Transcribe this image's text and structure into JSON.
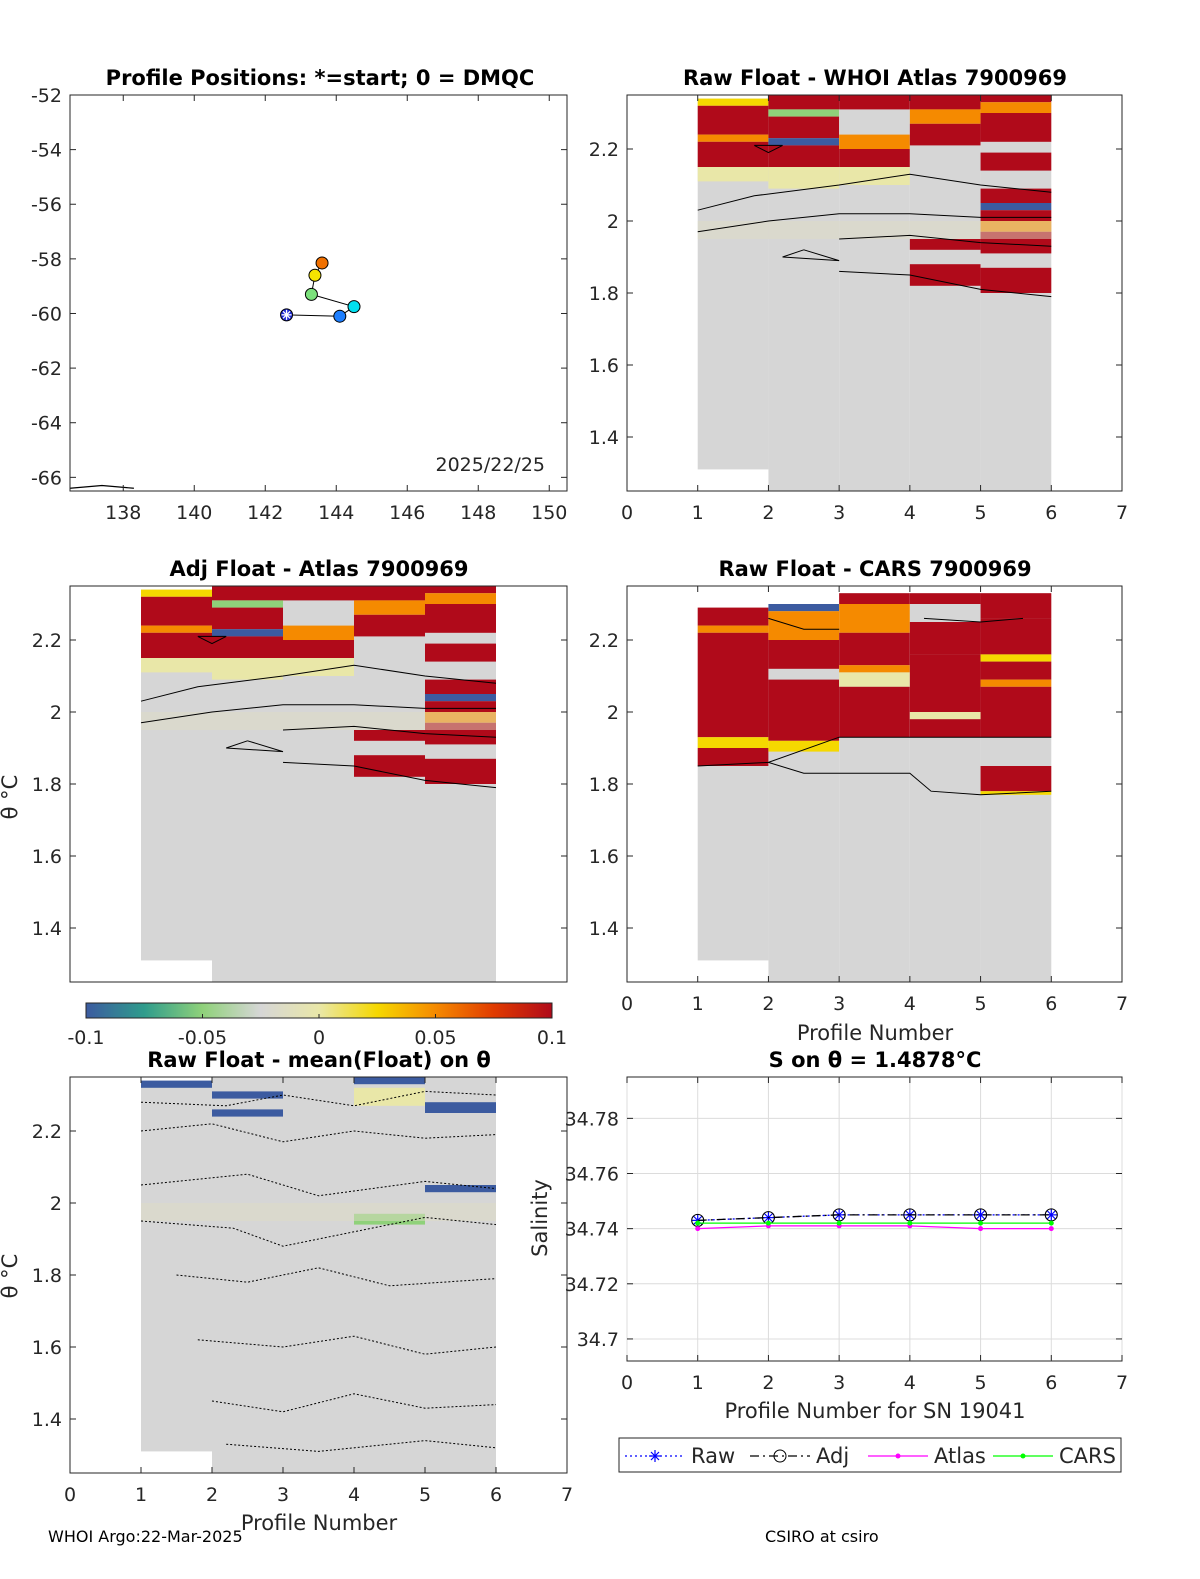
{
  "footer": {
    "left": "WHOI Argo:22-Mar-2025",
    "right": "CSIRO at csiro"
  },
  "colorbar": {
    "ticks": [
      "-0.1",
      "-0.05",
      "0",
      "0.05",
      "0.1"
    ],
    "range": [
      -0.1,
      0.1
    ],
    "colors": [
      "#3c5ba0",
      "#2f9c8c",
      "#8fd17a",
      "#d6d6d6",
      "#e9e7a8",
      "#f5d800",
      "#f58a00",
      "#e03b00",
      "#b00a1a"
    ]
  },
  "chart_data": [
    {
      "type": "scatter",
      "id": "positions",
      "title": "Profile Positions: *=start; 0 = DMQC",
      "annotation": "2025/22/25",
      "xlim": [
        136.5,
        150.5
      ],
      "ylim": [
        -66.5,
        -52
      ],
      "xticks": [
        "138",
        "140",
        "142",
        "144",
        "146",
        "148",
        "150"
      ],
      "yticks": [
        "-52",
        "-54",
        "-56",
        "-58",
        "-60",
        "-62",
        "-64",
        "-66"
      ],
      "points": [
        {
          "x": 142.6,
          "y": -60.05,
          "color": "#1f2ad6",
          "marker": "star"
        },
        {
          "x": 144.1,
          "y": -60.1,
          "color": "#1e7fff",
          "marker": "circle"
        },
        {
          "x": 144.5,
          "y": -59.75,
          "color": "#00e0f0",
          "marker": "circle"
        },
        {
          "x": 143.3,
          "y": -59.3,
          "color": "#7be07b",
          "marker": "circle"
        },
        {
          "x": 143.4,
          "y": -58.6,
          "color": "#f5e400",
          "marker": "circle"
        },
        {
          "x": 143.6,
          "y": -58.15,
          "color": "#f07000",
          "marker": "circle"
        }
      ],
      "coast_line": [
        [
          136.5,
          -66.4
        ],
        [
          137.4,
          -66.3
        ],
        [
          138.3,
          -66.4
        ]
      ]
    },
    {
      "type": "heatmap",
      "id": "raw-whoi",
      "title": "Raw Float - WHOI Atlas  7900969",
      "xlim": [
        0,
        7
      ],
      "ylim": [
        1.25,
        2.35
      ],
      "xticks": [
        "0",
        "1",
        "2",
        "3",
        "4",
        "5",
        "6",
        "7"
      ],
      "yticks": [
        "1.4",
        "1.6",
        "1.8",
        "2",
        "2.2"
      ]
    },
    {
      "type": "heatmap",
      "id": "adj-atlas",
      "title": "Adj Float - Atlas  7900969",
      "ylabel": "θ °C",
      "xlim": [
        0,
        7
      ],
      "ylim": [
        1.25,
        2.35
      ],
      "xticks": [],
      "yticks": [
        "1.4",
        "1.6",
        "1.8",
        "2",
        "2.2"
      ]
    },
    {
      "type": "heatmap",
      "id": "raw-cars",
      "title": "Raw Float - CARS  7900969",
      "xlabel": "Profile Number",
      "xlim": [
        0,
        7
      ],
      "ylim": [
        1.25,
        2.35
      ],
      "xticks": [
        "0",
        "1",
        "2",
        "3",
        "4",
        "5",
        "6",
        "7"
      ],
      "yticks": [
        "1.4",
        "1.6",
        "1.8",
        "2",
        "2.2"
      ]
    },
    {
      "type": "heatmap",
      "id": "raw-mean",
      "title": "Raw Float - mean(Float) on θ",
      "ylabel": "θ °C",
      "xlabel": "Profile Number",
      "xlim": [
        0,
        7
      ],
      "ylim": [
        1.25,
        2.35
      ],
      "xticks": [
        "0",
        "1",
        "2",
        "3",
        "4",
        "5",
        "6",
        "7"
      ],
      "yticks": [
        "1.4",
        "1.6",
        "1.8",
        "2",
        "2.2"
      ]
    },
    {
      "type": "line",
      "id": "salinity",
      "title": "S on θ = 1.4878°C",
      "ylabel": "Salinity",
      "xlabel": "Profile Number for SN 19041",
      "xlim": [
        0,
        7
      ],
      "ylim": [
        34.692,
        34.795
      ],
      "xticks": [
        "0",
        "1",
        "2",
        "3",
        "4",
        "5",
        "6",
        "7"
      ],
      "yticks": [
        "34.7",
        "34.72",
        "34.74",
        "34.76",
        "34.78"
      ],
      "grid": true,
      "legend": "bottom",
      "x": [
        1,
        2,
        3,
        4,
        5,
        6
      ],
      "series": [
        {
          "name": "Raw",
          "values": [
            34.743,
            34.744,
            34.745,
            34.745,
            34.745,
            34.745
          ],
          "color": "#0000ff",
          "marker": "star",
          "dash": "2,3"
        },
        {
          "name": "Adj",
          "values": [
            34.743,
            34.744,
            34.745,
            34.745,
            34.745,
            34.745
          ],
          "color": "#000000",
          "marker": "circle",
          "dash": "9,4,2,4"
        },
        {
          "name": "Atlas",
          "values": [
            34.74,
            34.741,
            34.741,
            34.741,
            34.74,
            34.74
          ],
          "color": "#ff00ff",
          "marker": "dot",
          "dash": ""
        },
        {
          "name": "CARS",
          "values": [
            34.742,
            34.742,
            34.742,
            34.742,
            34.742,
            34.742
          ],
          "color": "#00ff00",
          "marker": "dot",
          "dash": ""
        }
      ]
    }
  ]
}
